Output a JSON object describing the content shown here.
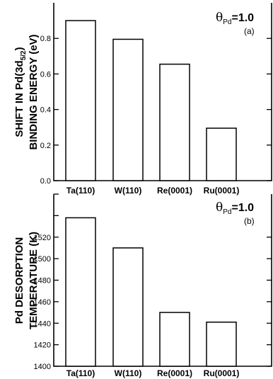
{
  "chart_data": [
    {
      "type": "bar",
      "categories": [
        "Ta(110)",
        "W(110)",
        "Re(0001)",
        "Ru(0001)"
      ],
      "values": [
        0.9,
        0.795,
        0.655,
        0.295
      ],
      "ylabel": "SHIFT IN Pd(3d",
      "ylabel_sub": "5/2",
      "ylabel_after": ")",
      "ylabel2": "BINDING ENERGY (eV)",
      "ylim": [
        0.0,
        1.0
      ],
      "yticks": [
        0.0,
        0.2,
        0.4,
        0.6,
        0.8
      ],
      "annotation": {
        "symbol": "θ",
        "sub": "Pd",
        "value": "=1.0"
      },
      "panel": "(a)",
      "grid": false
    },
    {
      "type": "bar",
      "categories": [
        "Ta(110)",
        "W(110)",
        "Re(0001)",
        "Ru(0001)"
      ],
      "values": [
        1538,
        1510,
        1450,
        1441
      ],
      "ylabel": "Pd DESORPTION",
      "ylabel2": "TEMPERATURE (K)",
      "ylim": [
        1400,
        1560
      ],
      "yticks": [
        1400,
        1420,
        1440,
        1460,
        1480,
        1500,
        1520
      ],
      "annotation": {
        "symbol": "θ",
        "sub": "Pd",
        "value": "=1.0"
      },
      "panel": "(b)",
      "grid": false
    }
  ]
}
